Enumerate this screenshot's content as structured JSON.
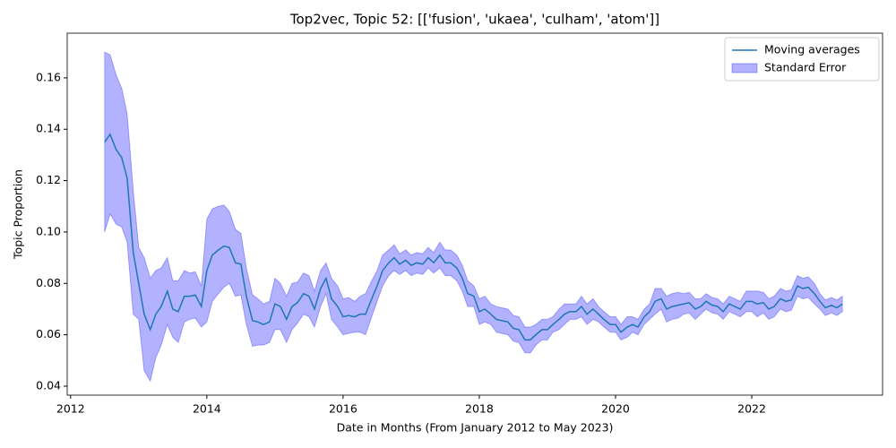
{
  "chart_data": {
    "type": "line",
    "title": "Top2vec, Topic 52: [['fusion', 'ukaea', 'culham', 'atom']]",
    "xlabel": "Date in Months (From January 2012 to May 2023)",
    "ylabel": "Topic Proportion",
    "x": [
      2012.5,
      2012.58,
      2012.67,
      2012.75,
      2012.83,
      2012.92,
      2013.0,
      2013.08,
      2013.17,
      2013.25,
      2013.33,
      2013.42,
      2013.5,
      2013.58,
      2013.67,
      2013.75,
      2013.83,
      2013.92,
      2014.0,
      2014.08,
      2014.17,
      2014.25,
      2014.33,
      2014.42,
      2014.5,
      2014.58,
      2014.67,
      2014.75,
      2014.83,
      2014.92,
      2015.0,
      2015.08,
      2015.17,
      2015.25,
      2015.33,
      2015.42,
      2015.5,
      2015.58,
      2015.67,
      2015.75,
      2015.83,
      2015.92,
      2016.0,
      2016.08,
      2016.17,
      2016.25,
      2016.33,
      2016.42,
      2016.5,
      2016.58,
      2016.67,
      2016.75,
      2016.83,
      2016.92,
      2017.0,
      2017.08,
      2017.17,
      2017.25,
      2017.33,
      2017.42,
      2017.5,
      2017.58,
      2017.67,
      2017.75,
      2017.83,
      2017.92,
      2018.0,
      2018.08,
      2018.17,
      2018.25,
      2018.33,
      2018.42,
      2018.5,
      2018.58,
      2018.67,
      2018.75,
      2018.83,
      2018.92,
      2019.0,
      2019.08,
      2019.17,
      2019.25,
      2019.33,
      2019.42,
      2019.5,
      2019.58,
      2019.67,
      2019.75,
      2019.83,
      2019.92,
      2020.0,
      2020.08,
      2020.17,
      2020.25,
      2020.33,
      2020.42,
      2020.5,
      2020.58,
      2020.67,
      2020.75,
      2020.83,
      2020.92,
      2021.0,
      2021.08,
      2021.17,
      2021.25,
      2021.33,
      2021.42,
      2021.5,
      2021.58,
      2021.67,
      2021.75,
      2021.83,
      2021.92,
      2022.0,
      2022.08,
      2022.17,
      2022.25,
      2022.33,
      2022.42,
      2022.5,
      2022.58,
      2022.67,
      2022.75,
      2022.83,
      2022.92,
      2023.0,
      2023.08,
      2023.17,
      2023.25,
      2023.33
    ],
    "series": [
      {
        "name": "Moving averages",
        "color": "#1f77b4",
        "values": [
          0.135,
          0.138,
          0.132,
          0.129,
          0.121,
          0.092,
          0.08,
          0.068,
          0.062,
          0.068,
          0.071,
          0.077,
          0.07,
          0.069,
          0.075,
          0.075,
          0.0755,
          0.071,
          0.085,
          0.091,
          0.093,
          0.0945,
          0.094,
          0.088,
          0.0875,
          0.075,
          0.0655,
          0.065,
          0.064,
          0.065,
          0.072,
          0.071,
          0.066,
          0.071,
          0.0725,
          0.076,
          0.075,
          0.07,
          0.078,
          0.082,
          0.074,
          0.071,
          0.067,
          0.0675,
          0.067,
          0.068,
          0.068,
          0.074,
          0.079,
          0.085,
          0.088,
          0.09,
          0.0875,
          0.089,
          0.087,
          0.088,
          0.0875,
          0.09,
          0.088,
          0.091,
          0.088,
          0.088,
          0.086,
          0.082,
          0.076,
          0.075,
          0.069,
          0.07,
          0.068,
          0.066,
          0.0655,
          0.065,
          0.0625,
          0.062,
          0.058,
          0.058,
          0.06,
          0.062,
          0.062,
          0.064,
          0.066,
          0.068,
          0.069,
          0.069,
          0.071,
          0.068,
          0.07,
          0.068,
          0.066,
          0.064,
          0.064,
          0.061,
          0.063,
          0.064,
          0.063,
          0.067,
          0.069,
          0.073,
          0.074,
          0.07,
          0.071,
          0.0715,
          0.072,
          0.0725,
          0.07,
          0.071,
          0.073,
          0.0715,
          0.071,
          0.069,
          0.072,
          0.071,
          0.07,
          0.073,
          0.073,
          0.072,
          0.0725,
          0.07,
          0.071,
          0.074,
          0.073,
          0.0735,
          0.079,
          0.078,
          0.0785,
          0.076,
          0.073,
          0.0705,
          0.0715,
          0.0705,
          0.072
        ]
      }
    ],
    "error": {
      "name": "Standard Error",
      "color": "#0000ff",
      "values": [
        0.035,
        0.031,
        0.029,
        0.027,
        0.025,
        0.024,
        0.014,
        0.022,
        0.02,
        0.017,
        0.015,
        0.013,
        0.011,
        0.012,
        0.01,
        0.009,
        0.009,
        0.008,
        0.02,
        0.018,
        0.017,
        0.016,
        0.014,
        0.013,
        0.012,
        0.011,
        0.01,
        0.009,
        0.008,
        0.008,
        0.01,
        0.009,
        0.009,
        0.009,
        0.008,
        0.008,
        0.008,
        0.007,
        0.007,
        0.006,
        0.008,
        0.008,
        0.007,
        0.007,
        0.006,
        0.007,
        0.008,
        0.007,
        0.006,
        0.006,
        0.005,
        0.005,
        0.004,
        0.004,
        0.004,
        0.004,
        0.004,
        0.004,
        0.004,
        0.005,
        0.005,
        0.005,
        0.005,
        0.005,
        0.005,
        0.004,
        0.005,
        0.005,
        0.004,
        0.005,
        0.005,
        0.005,
        0.005,
        0.005,
        0.005,
        0.005,
        0.004,
        0.004,
        0.004,
        0.003,
        0.004,
        0.004,
        0.003,
        0.003,
        0.004,
        0.004,
        0.004,
        0.003,
        0.003,
        0.003,
        0.003,
        0.003,
        0.004,
        0.003,
        0.003,
        0.003,
        0.003,
        0.005,
        0.004,
        0.005,
        0.005,
        0.005,
        0.004,
        0.004,
        0.004,
        0.003,
        0.003,
        0.003,
        0.003,
        0.003,
        0.003,
        0.003,
        0.003,
        0.004,
        0.004,
        0.005,
        0.004,
        0.004,
        0.004,
        0.004,
        0.004,
        0.004,
        0.004,
        0.004,
        0.004,
        0.004,
        0.003,
        0.003,
        0.003,
        0.003,
        0.003
      ]
    },
    "xlim": [
      2011.95,
      2023.92
    ],
    "ylim": [
      0.0365,
      0.1774
    ],
    "xticks": [
      2012,
      2014,
      2016,
      2018,
      2020,
      2022
    ],
    "yticks": [
      0.04,
      0.06,
      0.08,
      {
        "value": 0.1,
        "label": "0.10"
      },
      0.12,
      0.14,
      0.16
    ],
    "legend": "upper right"
  }
}
